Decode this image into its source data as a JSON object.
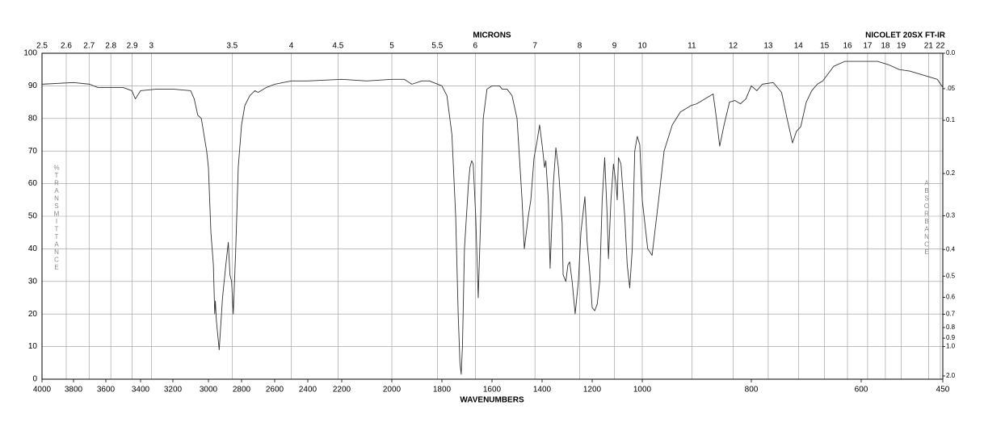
{
  "chart_data": {
    "type": "line",
    "title": "NICOLET 20SX FT-IR",
    "xlabel": "WAVENUMBERS",
    "x2label": "MICRONS",
    "ylabel": "%TRANSMITTANCE",
    "y2label": "ABSORBANCE",
    "color": "#333333",
    "grid": true,
    "xlim": [
      4000,
      450
    ],
    "xticks": [
      4000,
      3800,
      3600,
      3400,
      3200,
      3000,
      2800,
      2600,
      2400,
      2200,
      2000,
      1800,
      1600,
      1400,
      1200,
      1000,
      800,
      600,
      450
    ],
    "x2ticks": [
      2.5,
      2.6,
      2.7,
      2.8,
      2.9,
      3,
      3.5,
      4,
      4.5,
      5,
      5.5,
      6,
      7,
      8,
      9,
      10,
      11,
      12,
      13,
      14,
      15,
      16,
      17,
      18,
      19,
      21,
      22
    ],
    "ylim": [
      0,
      100
    ],
    "yticks": [
      0,
      10,
      20,
      30,
      40,
      50,
      60,
      70,
      80,
      90,
      100
    ],
    "y2ticks": [
      {
        "value": 0,
        "label": "0.0"
      },
      {
        "value": 0.05,
        "label": ".05"
      },
      0.1,
      0.2,
      0.3,
      0.4,
      0.5,
      0.6,
      0.7,
      0.8,
      0.9,
      {
        "value": 1,
        "label": "1.0"
      },
      {
        "value": 2,
        "label": "2.0"
      }
    ],
    "x": [
      4000,
      3800,
      3700,
      3650,
      3500,
      3450,
      3430,
      3400,
      3300,
      3200,
      3100,
      3080,
      3060,
      3040,
      3010,
      3000,
      2985,
      2970,
      2962,
      2958,
      2952,
      2935,
      2915,
      2895,
      2880,
      2870,
      2860,
      2850,
      2835,
      2820,
      2800,
      2780,
      2750,
      2720,
      2700,
      2650,
      2600,
      2500,
      2400,
      2200,
      2100,
      2000,
      1950,
      1920,
      1880,
      1850,
      1800,
      1780,
      1760,
      1745,
      1735,
      1728,
      1723,
      1718,
      1710,
      1694,
      1688,
      1681,
      1675,
      1665,
      1655,
      1645,
      1635,
      1620,
      1600,
      1570,
      1560,
      1540,
      1520,
      1500,
      1480,
      1471,
      1455,
      1445,
      1432,
      1420,
      1410,
      1400,
      1390,
      1385,
      1375,
      1368,
      1355,
      1345,
      1335,
      1320,
      1316,
      1305,
      1297,
      1290,
      1280,
      1268,
      1255,
      1245,
      1235,
      1229,
      1220,
      1210,
      1200,
      1190,
      1180,
      1170,
      1160,
      1150,
      1140,
      1135,
      1125,
      1115,
      1105,
      1100,
      1095,
      1085,
      1070,
      1060,
      1050,
      1040,
      1030,
      1020,
      1010,
      1000,
      990,
      982,
      970,
      960,
      945,
      930,
      910,
      900,
      880,
      870,
      864,
      858,
      850,
      840,
      830,
      820,
      810,
      800,
      790,
      780,
      760,
      745,
      735,
      725,
      718,
      710,
      700,
      690,
      680,
      670,
      650,
      630,
      600,
      570,
      550,
      530,
      510,
      490,
      470,
      460,
      450
    ],
    "values": [
      90.5,
      91,
      90.5,
      89.5,
      89.5,
      88.5,
      86,
      88.5,
      89,
      89,
      88.5,
      86,
      81,
      80,
      70,
      65,
      45,
      35,
      20,
      24,
      18,
      9,
      25,
      35,
      42,
      32,
      30,
      20,
      40,
      65,
      78,
      84,
      87,
      88.5,
      88,
      89.5,
      90.5,
      91.5,
      91.5,
      92,
      91.5,
      92,
      92,
      90.5,
      91.5,
      91.5,
      90,
      87,
      75,
      50,
      20,
      5,
      1.5,
      10,
      40,
      60,
      65,
      67,
      66,
      50,
      25,
      50,
      80,
      89,
      90,
      90,
      89,
      89,
      87,
      80,
      55,
      40,
      50,
      55,
      68,
      73,
      78,
      72,
      65,
      67,
      55,
      34,
      60,
      71,
      65,
      48,
      32,
      30,
      35,
      36,
      30,
      20,
      30,
      45,
      52,
      56,
      42,
      33,
      22,
      21,
      23,
      30,
      55,
      68,
      50,
      37,
      55,
      66,
      60,
      55,
      68,
      66,
      50,
      35,
      28,
      40,
      70,
      74.5,
      72,
      55,
      40,
      38,
      55,
      70,
      78,
      82,
      84,
      84.5,
      86.5,
      87.5,
      80,
      71.5,
      78,
      85,
      85.5,
      84.5,
      86,
      90,
      88.5,
      90.5,
      91,
      88,
      80,
      72.5,
      76,
      77.5,
      85,
      88.5,
      90.5,
      91.5,
      96,
      97.5,
      97.5,
      97.5,
      96.5,
      95,
      94.5,
      93.5,
      92.5,
      92,
      89.5
    ]
  }
}
